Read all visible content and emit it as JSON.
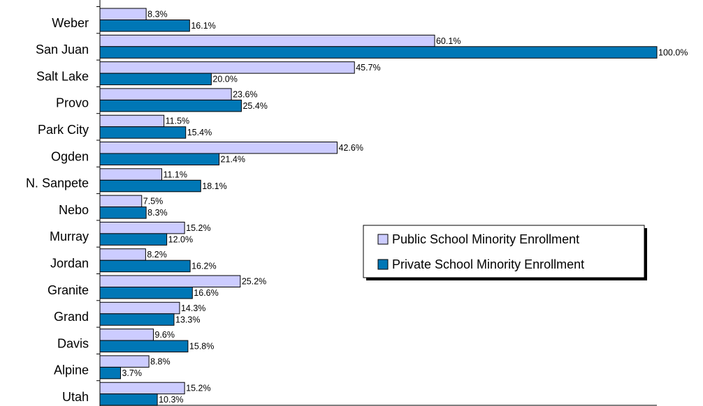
{
  "chart_data": {
    "type": "hbar",
    "categories": [
      "Weber",
      "San Juan",
      "Salt Lake",
      "Provo",
      "Park City",
      "Ogden",
      "N. Sanpete",
      "Nebo",
      "Murray",
      "Jordan",
      "Granite",
      "Grand",
      "Davis",
      "Alpine",
      "Utah"
    ],
    "series": [
      {
        "name": "Public School Minority Enrollment",
        "color": "#ccccff",
        "values": [
          8.3,
          60.1,
          45.7,
          23.6,
          11.5,
          42.6,
          11.1,
          7.5,
          15.2,
          8.2,
          25.2,
          14.3,
          9.6,
          8.8,
          15.2
        ],
        "value_labels": [
          "8.3%",
          "60.1%",
          "45.7%",
          "23.6%",
          "11.5%",
          "42.6%",
          "11.1%",
          "7.5%",
          "15.2%",
          "8.2%",
          "25.2%",
          "14.3%",
          "9.6%",
          "8.8%",
          "15.2%"
        ]
      },
      {
        "name": "Private School Minority Enrollment",
        "color": "#0077b6",
        "values": [
          16.1,
          100.0,
          20.0,
          25.4,
          15.4,
          21.4,
          18.1,
          8.3,
          12.0,
          16.2,
          16.6,
          13.3,
          15.8,
          3.7,
          10.3
        ],
        "value_labels": [
          "16.1%",
          "100.0%",
          "20.0%",
          "25.4%",
          "15.4%",
          "21.4%",
          "18.1%",
          "8.3%",
          "12.0%",
          "16.2%",
          "16.6%",
          "13.3%",
          "15.8%",
          "3.7%",
          "10.3%"
        ]
      }
    ],
    "xlim": [
      0,
      100
    ]
  }
}
